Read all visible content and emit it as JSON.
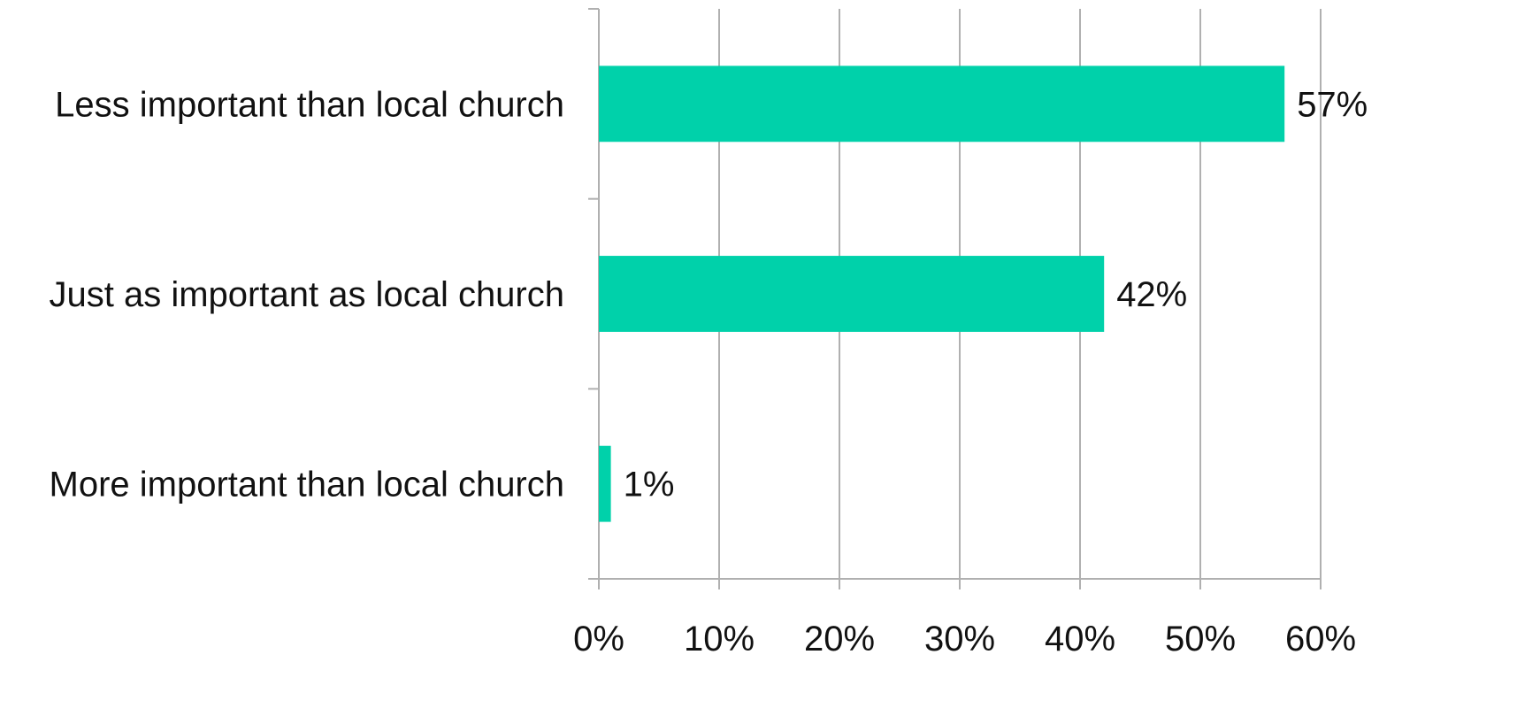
{
  "chart_data": {
    "type": "bar",
    "orientation": "horizontal",
    "title": "",
    "xlabel": "",
    "ylabel": "",
    "categories": [
      "Less important than local church",
      "Just as important as local church",
      "More important than local church"
    ],
    "values": [
      57,
      42,
      1
    ],
    "data_labels": [
      "57%",
      "42%",
      "1%"
    ],
    "xlim": [
      0,
      60
    ],
    "x_ticks": [
      0,
      10,
      20,
      30,
      40,
      50,
      60
    ],
    "x_tick_labels": [
      "0%",
      "10%",
      "20%",
      "30%",
      "40%",
      "50%",
      "60%"
    ],
    "grid": "vertical",
    "legend": "none",
    "colors": {
      "bar": "#00d1aa"
    }
  }
}
